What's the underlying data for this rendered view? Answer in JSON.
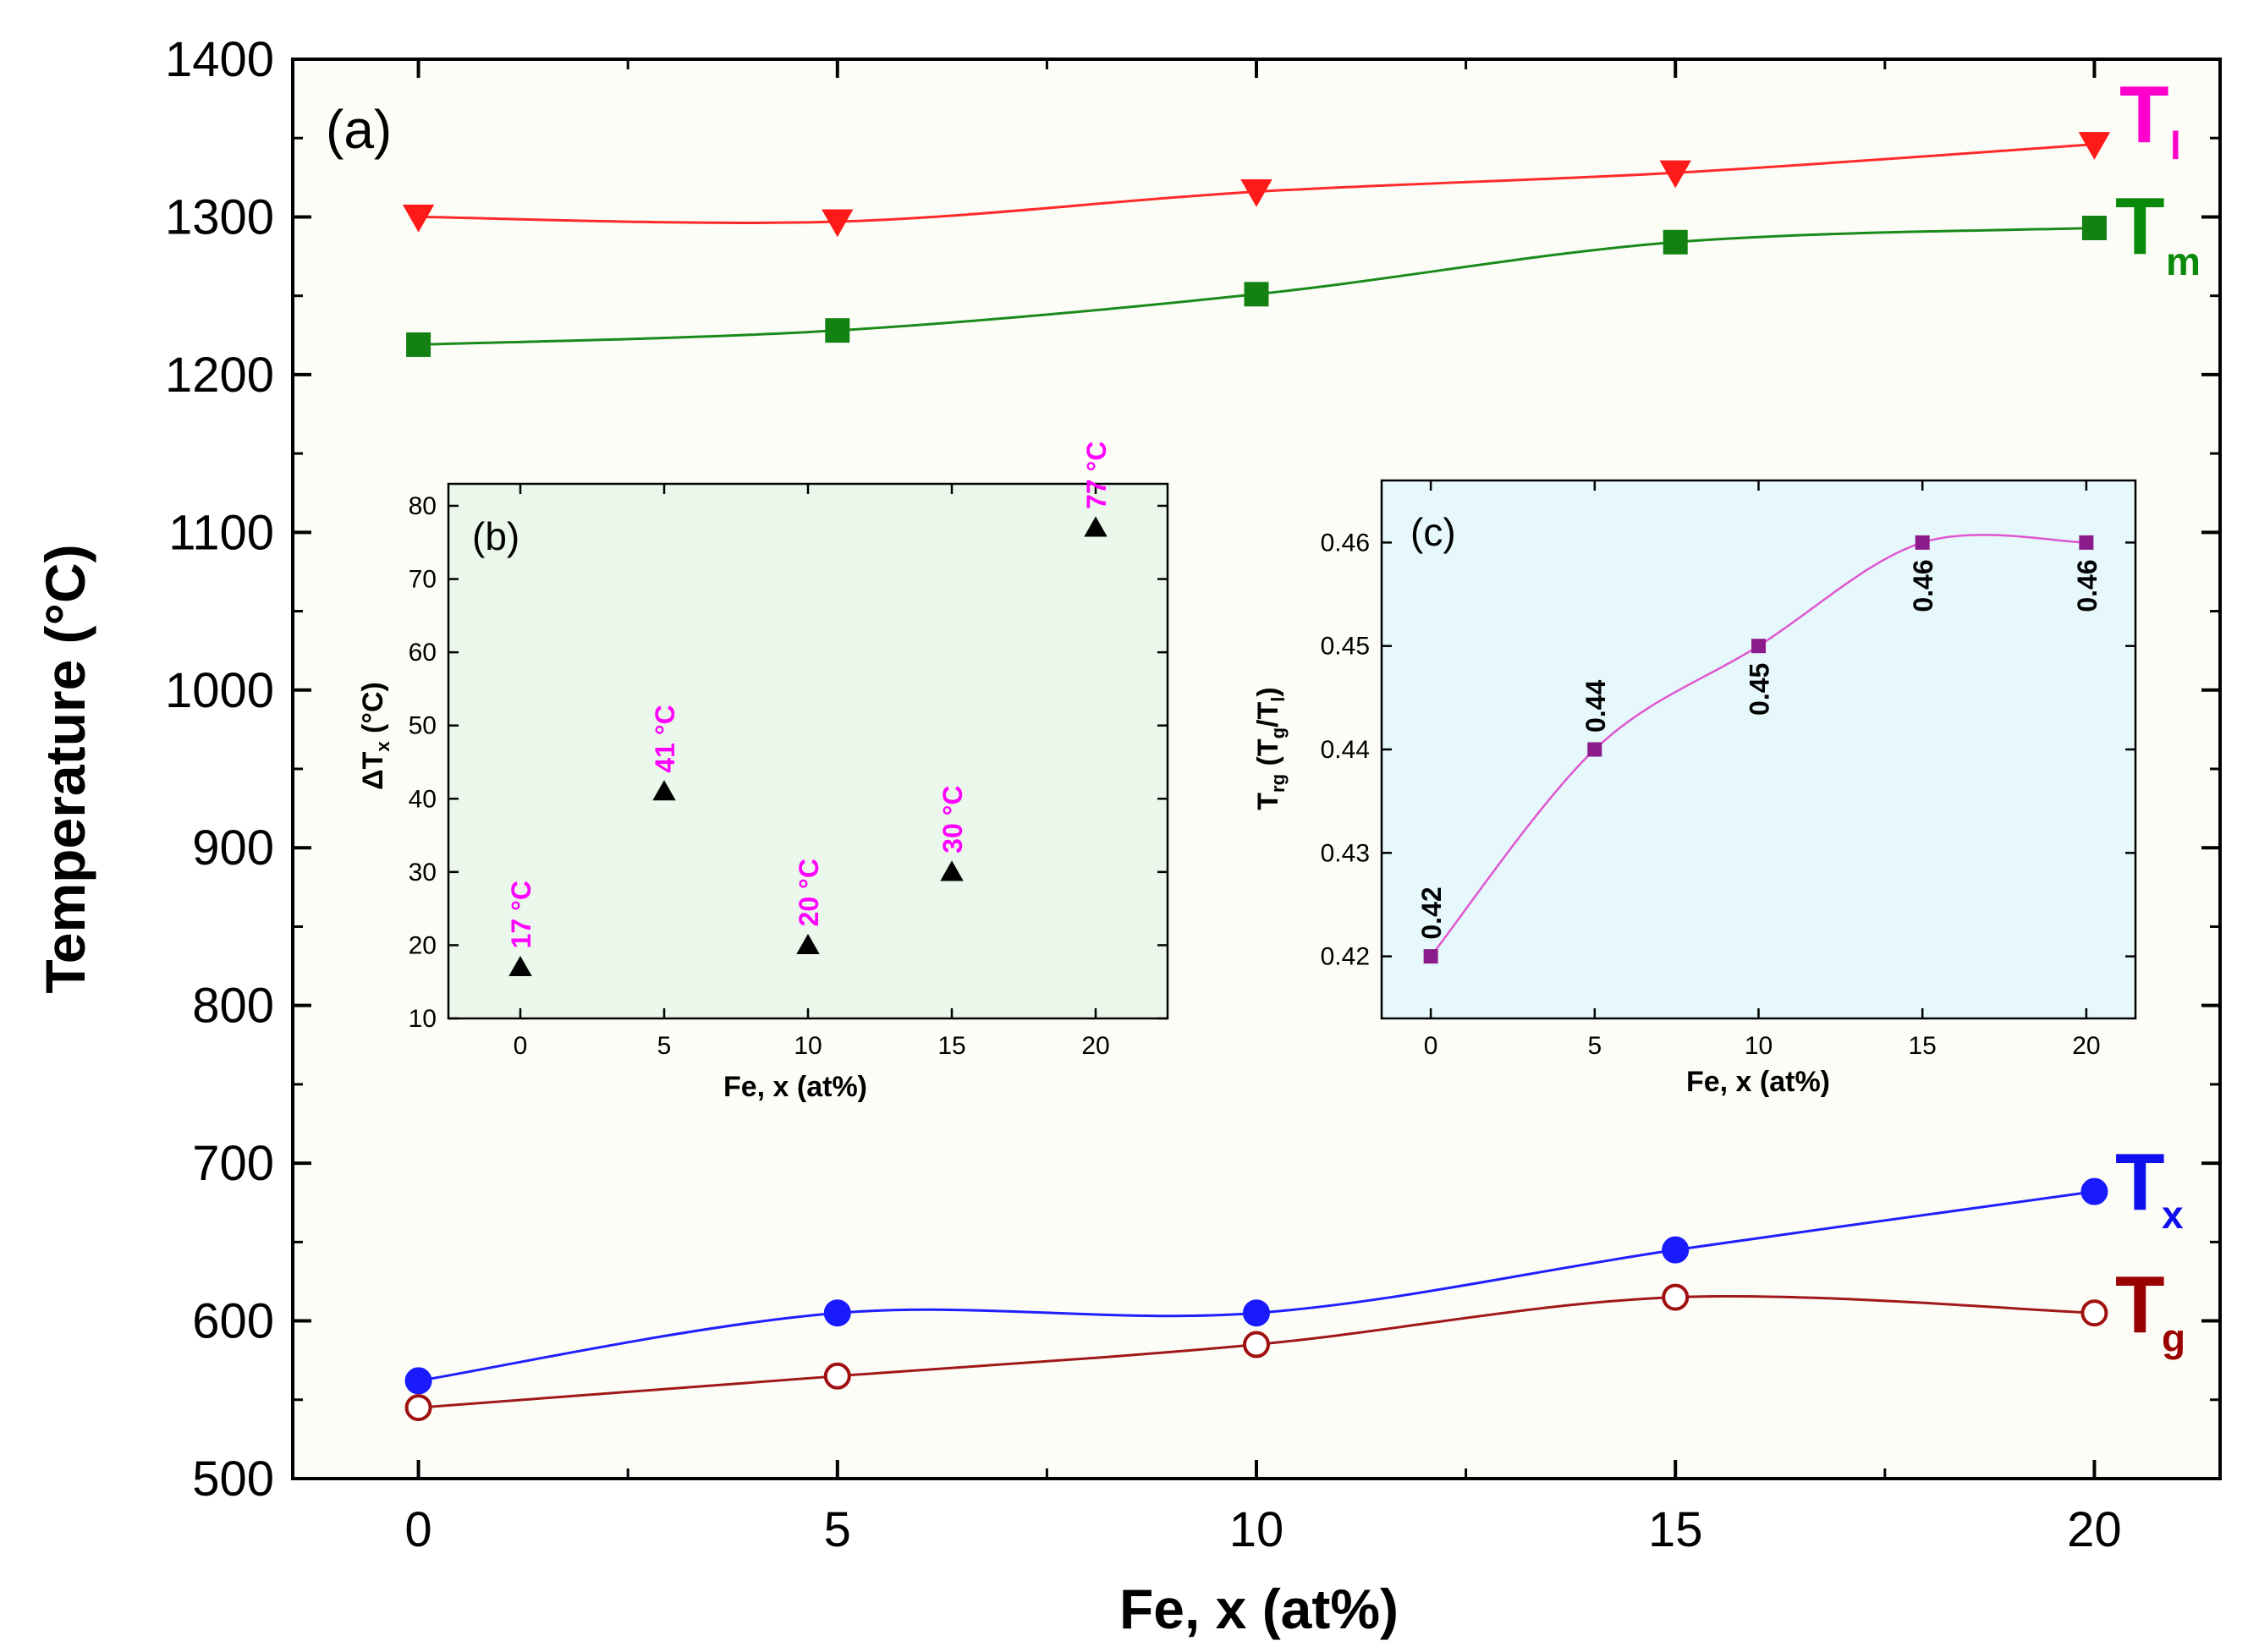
{
  "chart_data": [
    {
      "panel": "(a)",
      "type": "line",
      "xlabel": "Fe, x (at%)",
      "ylabel": "Temperature (°C)",
      "xlim": [
        -1.5,
        21.5
      ],
      "ylim": [
        500,
        1400
      ],
      "xticks": [
        0,
        5,
        10,
        15,
        20
      ],
      "yticks": [
        500,
        600,
        700,
        800,
        900,
        1000,
        1100,
        1200,
        1300,
        1400
      ],
      "x": [
        0,
        5,
        10,
        15,
        20
      ],
      "series": [
        {
          "name": "Tl",
          "label_main": "T",
          "label_sub": "l",
          "color": "#ff00cc",
          "line_color": "#ff2a2a",
          "marker": "triangle-down",
          "marker_color": "#ff1a1a",
          "filled": true,
          "x": [
            0,
            5,
            10,
            15,
            20
          ],
          "values": [
            1300,
            1297,
            1316,
            1328,
            1346
          ]
        },
        {
          "name": "Tm",
          "label_main": "T",
          "label_sub": "m",
          "color": "#0a8a0a",
          "line_color": "#1a8a1a",
          "marker": "square",
          "marker_color": "#138213",
          "filled": true,
          "x": [
            0,
            5,
            10,
            15,
            20
          ],
          "values": [
            1219,
            1228,
            1251,
            1284,
            1293
          ]
        },
        {
          "name": "Tx",
          "label_main": "T",
          "label_sub": "x",
          "color": "#1010ee",
          "line_color": "#1f1fff",
          "marker": "circle",
          "marker_color": "#1a1aff",
          "filled": true,
          "x": [
            0,
            5,
            10,
            15,
            20
          ],
          "values": [
            562,
            605,
            605,
            645,
            682
          ]
        },
        {
          "name": "Tg",
          "label_main": "T",
          "label_sub": "g",
          "color": "#990000",
          "line_color": "#a01818",
          "marker": "circle",
          "marker_color": "#a01010",
          "filled": false,
          "x": [
            0,
            5,
            10,
            15,
            20
          ],
          "values": [
            545,
            565,
            585,
            615,
            605
          ]
        }
      ]
    },
    {
      "panel": "(b)",
      "type": "scatter",
      "xlabel": "Fe, x (at%)",
      "ylabel": "ΔTx (°C)",
      "ylabel_main": "ΔT",
      "ylabel_sub": "x",
      "ylabel_unit": " (°C)",
      "xlim": [
        -2.5,
        22.5
      ],
      "ylim": [
        10,
        83
      ],
      "xticks": [
        0,
        5,
        10,
        15,
        20
      ],
      "yticks": [
        10,
        20,
        30,
        40,
        50,
        60,
        70,
        80
      ],
      "x": [
        0,
        5,
        10,
        15,
        20
      ],
      "values": [
        17,
        41,
        20,
        30,
        77
      ],
      "point_labels": [
        "17 °C",
        "41 °C",
        "20 °C",
        "30 °C",
        "77 °C"
      ],
      "label_color": "#ff00ff",
      "marker": "triangle-up",
      "marker_color": "#000000"
    },
    {
      "panel": "(c)",
      "type": "line",
      "xlabel": "Fe, x (at%)",
      "ylabel": "Trg (Tg/Tl)",
      "ylabel_main": "T",
      "ylabel_sub1": "rg",
      "ylabel_mid": " (T",
      "ylabel_sub2": "g",
      "ylabel_mid2": "/T",
      "ylabel_sub3": "l",
      "ylabel_end": ")",
      "xlim": [
        -1.5,
        21.5
      ],
      "ylim": [
        0.414,
        0.466
      ],
      "xticks": [
        0,
        5,
        10,
        15,
        20
      ],
      "yticks": [
        0.42,
        0.43,
        0.44,
        0.45,
        0.46
      ],
      "x": [
        0,
        5,
        10,
        15,
        20
      ],
      "values": [
        0.42,
        0.44,
        0.45,
        0.46,
        0.46
      ],
      "point_labels": [
        "0.42",
        "0.44",
        "0.45",
        "0.46",
        "0.46"
      ],
      "marker": "square",
      "marker_color": "#8b1a8b",
      "line_color": "#e055d0"
    }
  ]
}
